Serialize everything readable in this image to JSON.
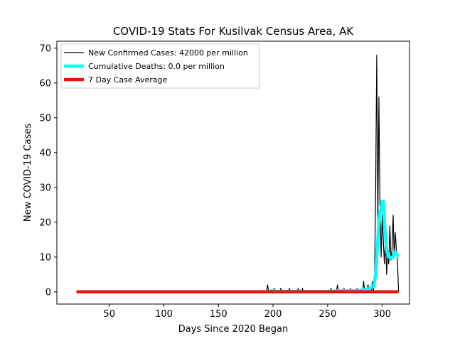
{
  "chart_data": {
    "type": "line",
    "title": "COVID-19 Stats For Kusilvak Census Area, AK",
    "xlabel": "Days Since 2020 Began",
    "ylabel": "New COVID-19 Cases",
    "xlim": [
      2,
      325
    ],
    "ylim": [
      -3.5,
      72
    ],
    "xticks": [
      50,
      100,
      150,
      200,
      250,
      300
    ],
    "yticks": [
      0,
      10,
      20,
      30,
      40,
      50,
      60,
      70
    ],
    "grid": false,
    "legend_position": "top-left",
    "series": [
      {
        "name": "New Confirmed Cases: 42000 per million",
        "color": "#000000",
        "x": [
          20,
          194,
          195,
          196,
          200,
          201,
          202,
          206,
          207,
          208,
          214,
          215,
          216,
          222,
          223,
          224,
          226,
          227,
          228,
          252,
          253,
          254,
          258,
          259,
          260,
          264,
          265,
          266,
          270,
          271,
          272,
          276,
          277,
          278,
          282,
          283,
          284,
          286,
          287,
          288,
          290,
          291,
          292,
          293,
          294,
          295,
          296,
          297,
          298,
          299,
          300,
          301,
          302,
          303,
          304,
          305,
          306,
          307,
          308,
          309,
          310,
          311,
          312,
          313,
          314,
          315
        ],
        "y": [
          0,
          0,
          2,
          0,
          0,
          1,
          0,
          0,
          1,
          0,
          0,
          1,
          0,
          0,
          1,
          0,
          0,
          1,
          0,
          0,
          1,
          0,
          0,
          2,
          0,
          0,
          1,
          0,
          0,
          1,
          0,
          0,
          1,
          0,
          0,
          3,
          0,
          0,
          2,
          0,
          0,
          3,
          0,
          5,
          30,
          68,
          20,
          56,
          25,
          10,
          22,
          15,
          8,
          16,
          5,
          12,
          8,
          19,
          9,
          12,
          22,
          10,
          17,
          12,
          9,
          0
        ]
      },
      {
        "name": "Cumulative Deaths: 0.0 per million",
        "color": "#00ffff",
        "x": [
          196,
          200,
          204,
          208,
          212,
          216,
          220,
          224,
          228,
          232,
          236,
          240,
          244,
          248,
          252,
          256,
          260,
          264,
          268,
          272,
          276,
          280,
          284,
          288,
          290,
          292,
          294,
          295,
          296,
          297,
          298,
          299,
          300,
          301,
          302,
          303,
          304,
          305,
          306,
          307,
          308,
          309,
          310,
          311,
          312,
          313,
          314,
          315
        ],
        "y": [
          0.2,
          0.3,
          0.1,
          0.2,
          0.1,
          0.2,
          0.1,
          0.2,
          0.1,
          0.1,
          0.1,
          0.1,
          0.1,
          0.1,
          0.2,
          0.2,
          0.3,
          0.3,
          0.3,
          0.3,
          0.3,
          0.4,
          0.7,
          1,
          1.2,
          1.5,
          5,
          10,
          15,
          20,
          23,
          24,
          26,
          26,
          20,
          16,
          12,
          11,
          10,
          10,
          9.5,
          10,
          10,
          11,
          11.5,
          11,
          10.5,
          10
        ]
      },
      {
        "name": "7 Day Case Average",
        "color": "#ee1111",
        "x": [
          20,
          315
        ],
        "y": [
          0,
          0
        ]
      }
    ]
  }
}
